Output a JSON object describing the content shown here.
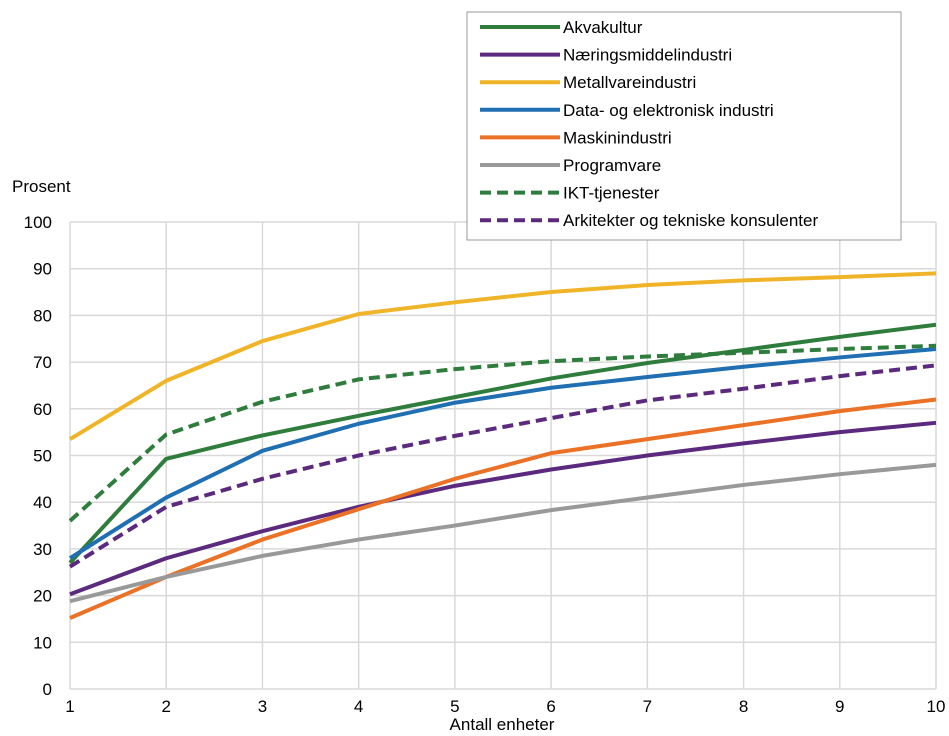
{
  "chart_data": {
    "type": "line",
    "title": "",
    "xlabel": "Antall enheter",
    "ylabel": "Prosent",
    "x": [
      1,
      2,
      3,
      4,
      5,
      6,
      7,
      8,
      9,
      10
    ],
    "x_ticks": [
      "1",
      "2",
      "3",
      "4",
      "5",
      "6",
      "7",
      "8",
      "9",
      "10"
    ],
    "ylim": [
      0,
      100
    ],
    "y_ticks": [
      "0",
      "10",
      "20",
      "30",
      "40",
      "50",
      "60",
      "70",
      "80",
      "90",
      "100"
    ],
    "grid": "both",
    "legend_position": "top-right",
    "series": [
      {
        "name": "Akvakultur",
        "color": "#2e7d3c",
        "dash": "solid",
        "values": [
          27,
          49.3,
          54.3,
          58.5,
          62.5,
          66.5,
          69.8,
          72.6,
          75.4,
          78
        ]
      },
      {
        "name": "Næringsmiddelindustri",
        "color": "#5b2a7e",
        "dash": "solid",
        "values": [
          20.3,
          28,
          33.8,
          39,
          43.5,
          47,
          50,
          52.6,
          55,
          57
        ]
      },
      {
        "name": "Metallvareindustri",
        "color": "#f0b429",
        "dash": "solid",
        "values": [
          53.5,
          66,
          74.5,
          80.3,
          82.8,
          85,
          86.5,
          87.5,
          88.2,
          89
        ]
      },
      {
        "name": "Data- og elektronisk industri",
        "color": "#1f6fb2",
        "dash": "solid",
        "values": [
          28,
          41,
          51,
          56.8,
          61.3,
          64.5,
          66.8,
          69,
          71,
          72.8
        ]
      },
      {
        "name": "Maskinindustri",
        "color": "#ea7125",
        "dash": "solid",
        "values": [
          15.2,
          24,
          32,
          38.5,
          45,
          50.5,
          53.5,
          56.5,
          59.5,
          62
        ]
      },
      {
        "name": "Programvare",
        "color": "#999999",
        "dash": "solid",
        "values": [
          18.8,
          24,
          28.5,
          32,
          35,
          38.3,
          41,
          43.7,
          46,
          48
        ]
      },
      {
        "name": "IKT-tjenester",
        "color": "#2e7d3c",
        "dash": "dashed",
        "values": [
          36,
          54.5,
          61.5,
          66.3,
          68.5,
          70.2,
          71.2,
          72,
          72.8,
          73.5
        ]
      },
      {
        "name": "Arkitekter og tekniske konsulenter",
        "color": "#5b2a7e",
        "dash": "dashed",
        "values": [
          26.2,
          39,
          45,
          50,
          54.2,
          58,
          61.8,
          64.3,
          67,
          69.3
        ]
      }
    ]
  }
}
